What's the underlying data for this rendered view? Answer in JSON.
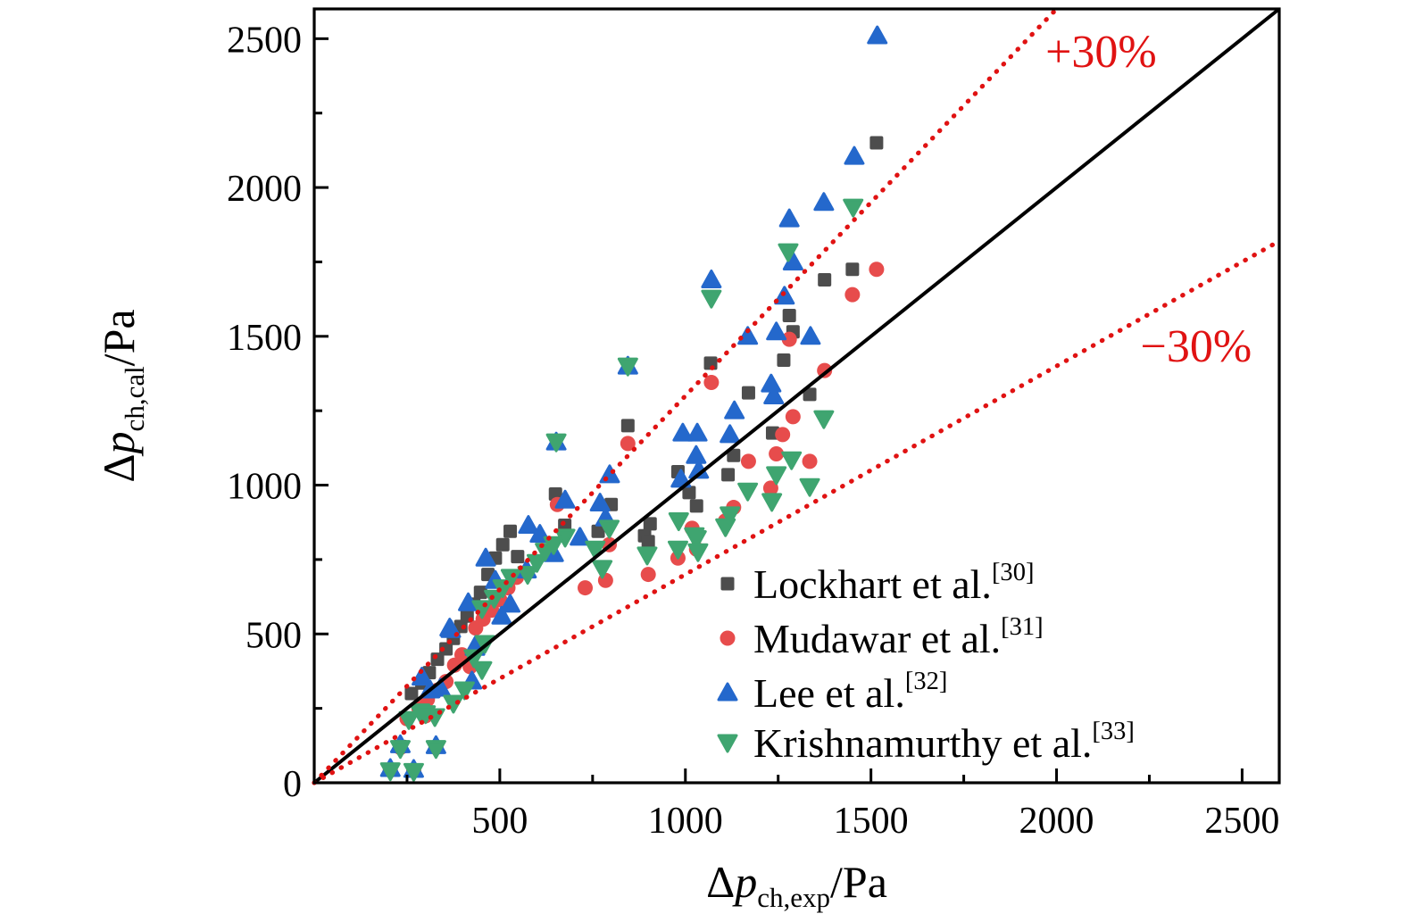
{
  "figure": {
    "background": "#ffffff",
    "axis_color": "#000000",
    "tick_label_fontsize": 42,
    "axis_title_fontsize": 50,
    "legend_fontsize": 46,
    "annotation_fontsize": 52
  },
  "chart_data": {
    "type": "scatter",
    "title": "",
    "xlabel_parts": {
      "prefix": "Δ",
      "symbol": "p",
      "subscript": "ch,exp",
      "suffix": "/Pa"
    },
    "ylabel_parts": {
      "prefix": "Δ",
      "symbol": "p",
      "subscript": "ch,cal",
      "suffix": "/Pa"
    },
    "xlim": [
      0,
      2600
    ],
    "ylim": [
      0,
      2600
    ],
    "x_ticks": [
      500,
      1000,
      1500,
      2000,
      2500
    ],
    "y_ticks": [
      0,
      500,
      1000,
      1500,
      2000,
      2500
    ],
    "x_minor_ticks": [
      250,
      750,
      1250,
      1750,
      2250
    ],
    "y_minor_ticks": [
      250,
      750,
      1250,
      1750,
      2250
    ],
    "grid": false,
    "legend_position": "lower-right-inside",
    "reference_lines": [
      {
        "name": "parity-line",
        "slope": 1.0,
        "style": "solid",
        "color": "#000000",
        "width": 4
      },
      {
        "name": "plus-30-line",
        "slope": 1.3,
        "style": "dotted",
        "color": "#e01212",
        "width": 5.2
      },
      {
        "name": "minus-30-line",
        "slope": 0.7,
        "style": "dotted",
        "color": "#e01212",
        "width": 5.2
      }
    ],
    "annotations": [
      {
        "text": "+30%",
        "x": 2120,
        "y": 2405,
        "color": "#e01212"
      },
      {
        "text": "−30%",
        "x": 2376,
        "y": 1416,
        "color": "#e01212"
      }
    ],
    "series": [
      {
        "name": "Lockhart et al.",
        "ref": "[30]",
        "marker": "square",
        "color": "#4d4d4d",
        "points": [
          [
            205,
            45
          ],
          [
            268,
            42
          ],
          [
            232,
            122
          ],
          [
            328,
            120
          ],
          [
            262,
            300
          ],
          [
            290,
            335
          ],
          [
            310,
            370
          ],
          [
            332,
            415
          ],
          [
            355,
            450
          ],
          [
            375,
            485
          ],
          [
            395,
            525
          ],
          [
            412,
            560
          ],
          [
            300,
            250
          ],
          [
            430,
            600
          ],
          [
            448,
            640
          ],
          [
            468,
            700
          ],
          [
            488,
            755
          ],
          [
            508,
            800
          ],
          [
            528,
            845
          ],
          [
            548,
            760
          ],
          [
            650,
            970
          ],
          [
            675,
            865
          ],
          [
            765,
            845
          ],
          [
            800,
            935
          ],
          [
            845,
            1200
          ],
          [
            890,
            830
          ],
          [
            905,
            870
          ],
          [
            900,
            810
          ],
          [
            980,
            1045
          ],
          [
            1010,
            975
          ],
          [
            1030,
            930
          ],
          [
            1068,
            1410
          ],
          [
            1115,
            1035
          ],
          [
            1130,
            1100
          ],
          [
            1170,
            1310
          ],
          [
            1235,
            1175
          ],
          [
            1265,
            1420
          ],
          [
            1280,
            1570
          ],
          [
            1290,
            1515
          ],
          [
            1335,
            1305
          ],
          [
            1375,
            1690
          ],
          [
            1450,
            1725
          ],
          [
            1515,
            2150
          ]
        ]
      },
      {
        "name": "Mudawar et al.",
        "ref": "[31]",
        "marker": "circle",
        "color": "#e74c4c",
        "points": [
          [
            205,
            42
          ],
          [
            268,
            40
          ],
          [
            232,
            118
          ],
          [
            328,
            118
          ],
          [
            250,
            215
          ],
          [
            282,
            250
          ],
          [
            305,
            280
          ],
          [
            330,
            310
          ],
          [
            300,
            225
          ],
          [
            355,
            340
          ],
          [
            378,
            395
          ],
          [
            398,
            430
          ],
          [
            420,
            390
          ],
          [
            435,
            520
          ],
          [
            455,
            550
          ],
          [
            478,
            580
          ],
          [
            500,
            615
          ],
          [
            522,
            655
          ],
          [
            545,
            690
          ],
          [
            655,
            935
          ],
          [
            730,
            655
          ],
          [
            785,
            680
          ],
          [
            795,
            800
          ],
          [
            845,
            1140
          ],
          [
            900,
            700
          ],
          [
            980,
            755
          ],
          [
            1018,
            855
          ],
          [
            1030,
            785
          ],
          [
            1070,
            1345
          ],
          [
            1108,
            880
          ],
          [
            1130,
            925
          ],
          [
            1170,
            1080
          ],
          [
            1230,
            990
          ],
          [
            1245,
            1105
          ],
          [
            1262,
            1170
          ],
          [
            1290,
            1230
          ],
          [
            1280,
            1490
          ],
          [
            1335,
            1080
          ],
          [
            1375,
            1385
          ],
          [
            1450,
            1640
          ],
          [
            1515,
            1725
          ]
        ]
      },
      {
        "name": "Lee et al.",
        "ref": "[32]",
        "marker": "triangle-up",
        "color": "#2468cc",
        "points": [
          [
            205,
            48
          ],
          [
            268,
            45
          ],
          [
            232,
            128
          ],
          [
            328,
            125
          ],
          [
            290,
            355
          ],
          [
            312,
            312
          ],
          [
            340,
            318
          ],
          [
            365,
            520
          ],
          [
            415,
            605
          ],
          [
            435,
            462
          ],
          [
            425,
            342
          ],
          [
            462,
            755
          ],
          [
            488,
            680
          ],
          [
            368,
            515
          ],
          [
            433,
            455
          ],
          [
            505,
            560
          ],
          [
            528,
            600
          ],
          [
            572,
            715
          ],
          [
            577,
            865
          ],
          [
            608,
            835
          ],
          [
            645,
            770
          ],
          [
            676,
            950
          ],
          [
            716,
            825
          ],
          [
            770,
            940
          ],
          [
            785,
            890
          ],
          [
            796,
            1035
          ],
          [
            845,
            1400
          ],
          [
            652,
            1145
          ],
          [
            988,
            1020
          ],
          [
            993,
            1175
          ],
          [
            1029,
            1100
          ],
          [
            1032,
            1175
          ],
          [
            1036,
            1050
          ],
          [
            1070,
            1690
          ],
          [
            1120,
            1170
          ],
          [
            1132,
            1250
          ],
          [
            1168,
            1500
          ],
          [
            1231,
            1340
          ],
          [
            1238,
            1300
          ],
          [
            1245,
            1515
          ],
          [
            1267,
            1635
          ],
          [
            1280,
            1895
          ],
          [
            1290,
            1750
          ],
          [
            1337,
            1500
          ],
          [
            1373,
            1950
          ],
          [
            1455,
            2105
          ],
          [
            1517,
            2510
          ]
        ]
      },
      {
        "name": "Krishnamurthy et al.",
        "ref": "[33]",
        "marker": "triangle-down",
        "color": "#3fa570",
        "points": [
          [
            205,
            40
          ],
          [
            268,
            38
          ],
          [
            232,
            115
          ],
          [
            328,
            115
          ],
          [
            255,
            212
          ],
          [
            285,
            238
          ],
          [
            325,
            222
          ],
          [
            375,
            267
          ],
          [
            405,
            312
          ],
          [
            452,
            380
          ],
          [
            430,
            420
          ],
          [
            460,
            468
          ],
          [
            452,
            585
          ],
          [
            485,
            620
          ],
          [
            508,
            655
          ],
          [
            530,
            690
          ],
          [
            300,
            232
          ],
          [
            575,
            700
          ],
          [
            600,
            740
          ],
          [
            622,
            778
          ],
          [
            645,
            800
          ],
          [
            676,
            825
          ],
          [
            757,
            785
          ],
          [
            776,
            720
          ],
          [
            795,
            855
          ],
          [
            897,
            765
          ],
          [
            980,
            785
          ],
          [
            982,
            880
          ],
          [
            1024,
            830
          ],
          [
            1030,
            820
          ],
          [
            1034,
            776
          ],
          [
            1108,
            860
          ],
          [
            1120,
            900
          ],
          [
            1168,
            980
          ],
          [
            1233,
            945
          ],
          [
            1245,
            1035
          ],
          [
            1286,
            1085
          ],
          [
            1335,
            995
          ],
          [
            1373,
            1223
          ],
          [
            652,
            1145
          ],
          [
            845,
            1400
          ],
          [
            1070,
            1628
          ],
          [
            1277,
            1784
          ],
          [
            1452,
            1934
          ]
        ]
      }
    ]
  },
  "legend": {
    "items": [
      {
        "label": "Lockhart et al.",
        "ref": "[30]",
        "marker": "square",
        "color": "#4d4d4d"
      },
      {
        "label": "Mudawar et al.",
        "ref": "[31]",
        "marker": "circle",
        "color": "#e74c4c"
      },
      {
        "label": "Lee et al.",
        "ref": "[32]",
        "marker": "triangle-up",
        "color": "#2468cc"
      },
      {
        "label": "Krishnamurthy et al.",
        "ref": "[33]",
        "marker": "triangle-down",
        "color": "#3fa570"
      }
    ]
  }
}
